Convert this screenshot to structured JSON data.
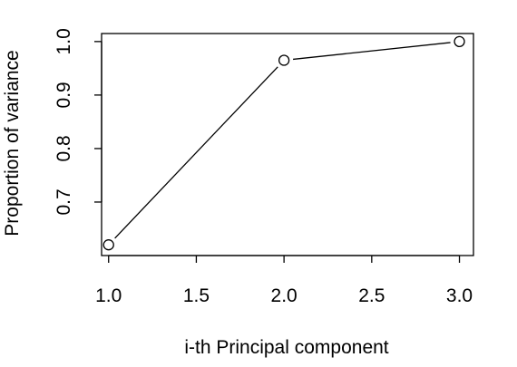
{
  "chart_data": {
    "type": "line",
    "title": "",
    "xlabel": "i-th Principal component",
    "ylabel": "Proportion of variance",
    "x": [
      1,
      2,
      3
    ],
    "series": [
      {
        "values": [
          0.62,
          0.965,
          1.0
        ]
      }
    ],
    "xlim": [
      0.96,
      3.08
    ],
    "ylim": [
      0.6,
      1.015
    ],
    "xticks": [
      1.0,
      1.5,
      2.0,
      2.5,
      3.0
    ],
    "xtick_labels": [
      "1.0",
      "1.5",
      "2.0",
      "2.5",
      "3.0"
    ],
    "yticks": [
      0.7,
      0.8,
      0.9,
      1.0
    ],
    "ytick_labels": [
      "0.7",
      "0.8",
      "0.9",
      "1.0"
    ],
    "marker": "open-circle",
    "line_color": "#000000",
    "background": "#ffffff",
    "grid": false,
    "legend": "none"
  }
}
